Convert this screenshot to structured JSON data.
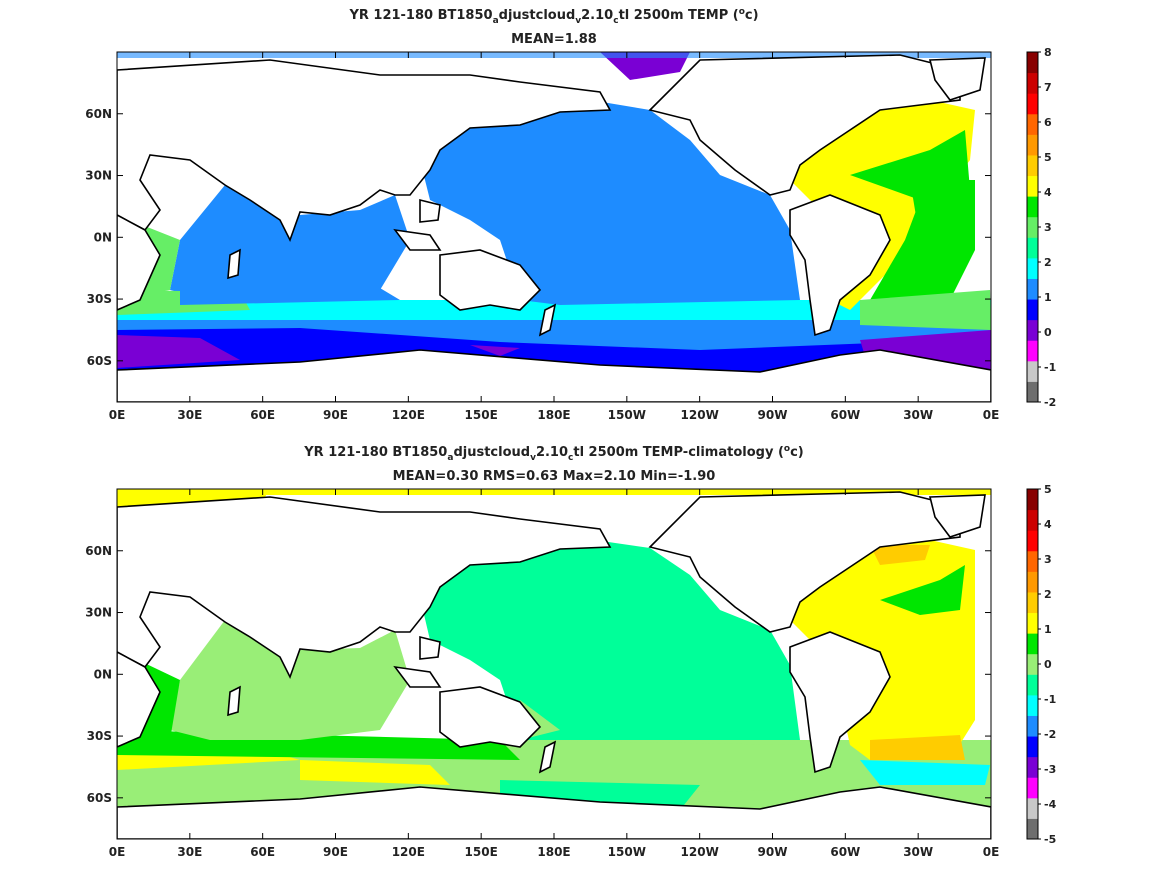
{
  "chart_data": [
    {
      "type": "heatmap",
      "title_pre": "YR 121-180 BT1850",
      "title_sub1": "a",
      "title_mid1": "djustcloud",
      "title_sub2": "v",
      "title_mid2": "2.10",
      "title_sub3": "c",
      "title_post": "tl 2500m TEMP (",
      "title_sup": "o",
      "title_end": "c)",
      "subtitle": "MEAN=1.88",
      "x_ticks": [
        "0E",
        "30E",
        "60E",
        "90E",
        "120E",
        "150E",
        "180E",
        "150W",
        "120W",
        "90W",
        "60W",
        "30W",
        "0E"
      ],
      "y_ticks": [
        "60N",
        "30N",
        "0N",
        "30S",
        "60S"
      ],
      "y_tick_lat": [
        60,
        30,
        0,
        -30,
        -60
      ],
      "colorbar_ticks": [
        "8",
        "7",
        "6",
        "5",
        "4",
        "3",
        "2",
        "1",
        "0",
        "-1",
        "-2"
      ],
      "colorbar_levels": [
        -2,
        -1,
        0,
        1,
        2,
        3,
        4,
        5,
        6,
        7,
        8
      ],
      "colorbar_colors": [
        "#6e6e6e",
        "#c8c8c8",
        "#ff00ff",
        "#7a00d4",
        "#0000ff",
        "#1e8cff",
        "#00ffff",
        "#00ff99",
        "#66ee66",
        "#00e600",
        "#ffff00",
        "#ffcc00",
        "#ff9900",
        "#ff6600",
        "#ff0000",
        "#cc0000",
        "#880000"
      ],
      "ylim": [
        -80,
        90
      ],
      "xlim": [
        0,
        360
      ]
    },
    {
      "type": "heatmap",
      "title_pre": "YR 121-180 BT1850",
      "title_sub1": "a",
      "title_mid1": "djustcloud",
      "title_sub2": "v",
      "title_mid2": "2.10",
      "title_sub3": "c",
      "title_post": "tl 2500m TEMP-climatology (",
      "title_sup": "o",
      "title_end": "c)",
      "subtitle": "MEAN=0.30   RMS=0.63   Max=2.10   Min=-1.90",
      "x_ticks": [
        "0E",
        "30E",
        "60E",
        "90E",
        "120E",
        "150E",
        "180E",
        "150W",
        "120W",
        "90W",
        "60W",
        "30W",
        "0E"
      ],
      "y_ticks": [
        "60N",
        "30N",
        "0N",
        "30S",
        "60S"
      ],
      "y_tick_lat": [
        60,
        30,
        0,
        -30,
        -60
      ],
      "colorbar_ticks": [
        "5",
        "4",
        "3",
        "2",
        "1",
        "0",
        "-1",
        "-2",
        "-3",
        "-4",
        "-5"
      ],
      "colorbar_levels": [
        -5,
        -4,
        -3,
        -2,
        -1,
        0,
        1,
        2,
        3,
        4,
        5
      ],
      "colorbar_colors": [
        "#6e6e6e",
        "#c8c8c8",
        "#ff00ff",
        "#7a00d4",
        "#0000ff",
        "#1e8cff",
        "#00ffff",
        "#00ff99",
        "#99ee77",
        "#00e600",
        "#ffff00",
        "#ffcc00",
        "#ff9900",
        "#ff6600",
        "#ff0000",
        "#cc0000",
        "#880000"
      ],
      "ylim": [
        -80,
        90
      ],
      "xlim": [
        0,
        360
      ]
    }
  ]
}
